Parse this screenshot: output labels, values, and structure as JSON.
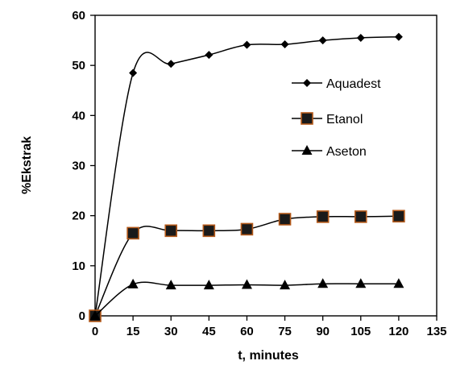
{
  "chart_data": {
    "type": "line",
    "xlabel": "t, minutes",
    "ylabel": "%Ekstrak",
    "xlim": [
      0,
      135
    ],
    "ylim": [
      0,
      60
    ],
    "x_ticks": [
      "0",
      "15",
      "30",
      "45",
      "60",
      "75",
      "90",
      "105",
      "120",
      "135"
    ],
    "y_ticks": [
      "0",
      "10",
      "20",
      "30",
      "40",
      "50",
      "60"
    ],
    "x": [
      0,
      15,
      30,
      45,
      60,
      75,
      90,
      105,
      120
    ],
    "grid": false,
    "legend_position": "right",
    "series": [
      {
        "name": "Aquadest",
        "marker": "diamond",
        "color": "#000000",
        "values": [
          0,
          48.5,
          50.3,
          52.1,
          54.1,
          54.2,
          55.0,
          55.5,
          55.7
        ]
      },
      {
        "name": "Etanol",
        "marker": "square",
        "color": "#000000",
        "marker_fill": "#1a1a1a",
        "marker_edge": "#b55a1a",
        "values": [
          0,
          16.5,
          17.0,
          17.0,
          17.3,
          19.3,
          19.8,
          19.8,
          19.9
        ]
      },
      {
        "name": "Aseton",
        "marker": "triangle",
        "color": "#000000",
        "values": [
          0,
          6.3,
          6.1,
          6.1,
          6.2,
          6.1,
          6.4,
          6.4,
          6.4
        ]
      }
    ]
  }
}
